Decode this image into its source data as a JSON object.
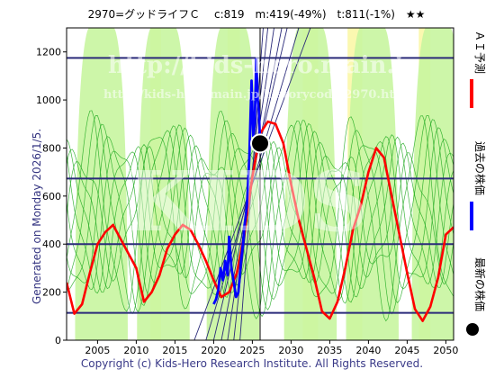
{
  "header": {
    "title": "2970=グッドライフＣ　 c:819　m:419(-49%)　t:811(-1%)　★★"
  },
  "side_note": "Generated on Monday 2026/1/5.",
  "copyright": "Copyright (c) Kids-Hero Research Institute. All Rights Reserved.",
  "watermarks": {
    "main": "http://kids-hero.main.jp",
    "sub": "http://kids-hero.main.jp/historycode/2970.html",
    "big": "KIDS"
  },
  "legend": {
    "ai_forecast": "ＡＩ予測",
    "past_price": "過去の株価",
    "latest_price": "最新の株価"
  },
  "colors": {
    "plot_bg": "#ffffff",
    "band_light_green": "#c8f5a0",
    "band_yellow": "#fbf8b0",
    "thin_lines": "#22aa22",
    "forecast": "#ff0000",
    "past": "#0000ff",
    "hlines": "#2b2b7a",
    "latest_dot": "#000000"
  },
  "chart_data": {
    "type": "line",
    "xlim": [
      2001,
      2051
    ],
    "ylim": [
      0,
      1300
    ],
    "xticks": [
      2005,
      2010,
      2015,
      2020,
      2025,
      2030,
      2035,
      2040,
      2045,
      2050
    ],
    "yticks": [
      0,
      200,
      400,
      600,
      800,
      1000,
      1200
    ],
    "grid": false,
    "horizontal_lines": [
      1175,
      673,
      400,
      114
    ],
    "current_year_line": 2026,
    "latest_point": {
      "x": 2026.0,
      "y": 819
    },
    "series": [
      {
        "name": "ＡＩ予測",
        "color": "#ff0000",
        "x": [
          2001,
          2002,
          2003,
          2004,
          2005,
          2006,
          2007,
          2008,
          2009,
          2010,
          2011,
          2012,
          2013,
          2014,
          2015,
          2016,
          2017,
          2018,
          2019,
          2020,
          2021,
          2022,
          2023,
          2024,
          2025,
          2026,
          2027,
          2028,
          2029,
          2030,
          2031,
          2032,
          2033,
          2034,
          2035,
          2036,
          2037,
          2038,
          2039,
          2040,
          2041,
          2042,
          2043,
          2044,
          2045,
          2046,
          2047,
          2048,
          2049,
          2050,
          2051
        ],
        "y": [
          240,
          110,
          150,
          280,
          400,
          450,
          480,
          420,
          360,
          300,
          160,
          200,
          270,
          380,
          440,
          480,
          460,
          400,
          330,
          250,
          180,
          200,
          280,
          450,
          680,
          860,
          910,
          900,
          820,
          650,
          500,
          380,
          260,
          120,
          90,
          160,
          300,
          460,
          560,
          700,
          800,
          760,
          600,
          440,
          280,
          130,
          80,
          140,
          260,
          440,
          470
        ]
      },
      {
        "name": "過去の株価",
        "color": "#0000ff",
        "x": [
          2020.0,
          2020.3,
          2020.6,
          2020.9,
          2021.2,
          2021.5,
          2021.8,
          2022.0,
          2022.3,
          2022.6,
          2022.9,
          2023.2,
          2023.5,
          2023.8,
          2024.0,
          2024.3,
          2024.6,
          2024.9,
          2025.1,
          2025.3,
          2025.5,
          2025.7,
          2025.85,
          2026.0
        ],
        "y": [
          150,
          170,
          210,
          300,
          250,
          330,
          270,
          430,
          300,
          240,
          180,
          200,
          320,
          410,
          480,
          560,
          760,
          1080,
          850,
          900,
          1170,
          1000,
          950,
          819
        ]
      }
    ]
  }
}
